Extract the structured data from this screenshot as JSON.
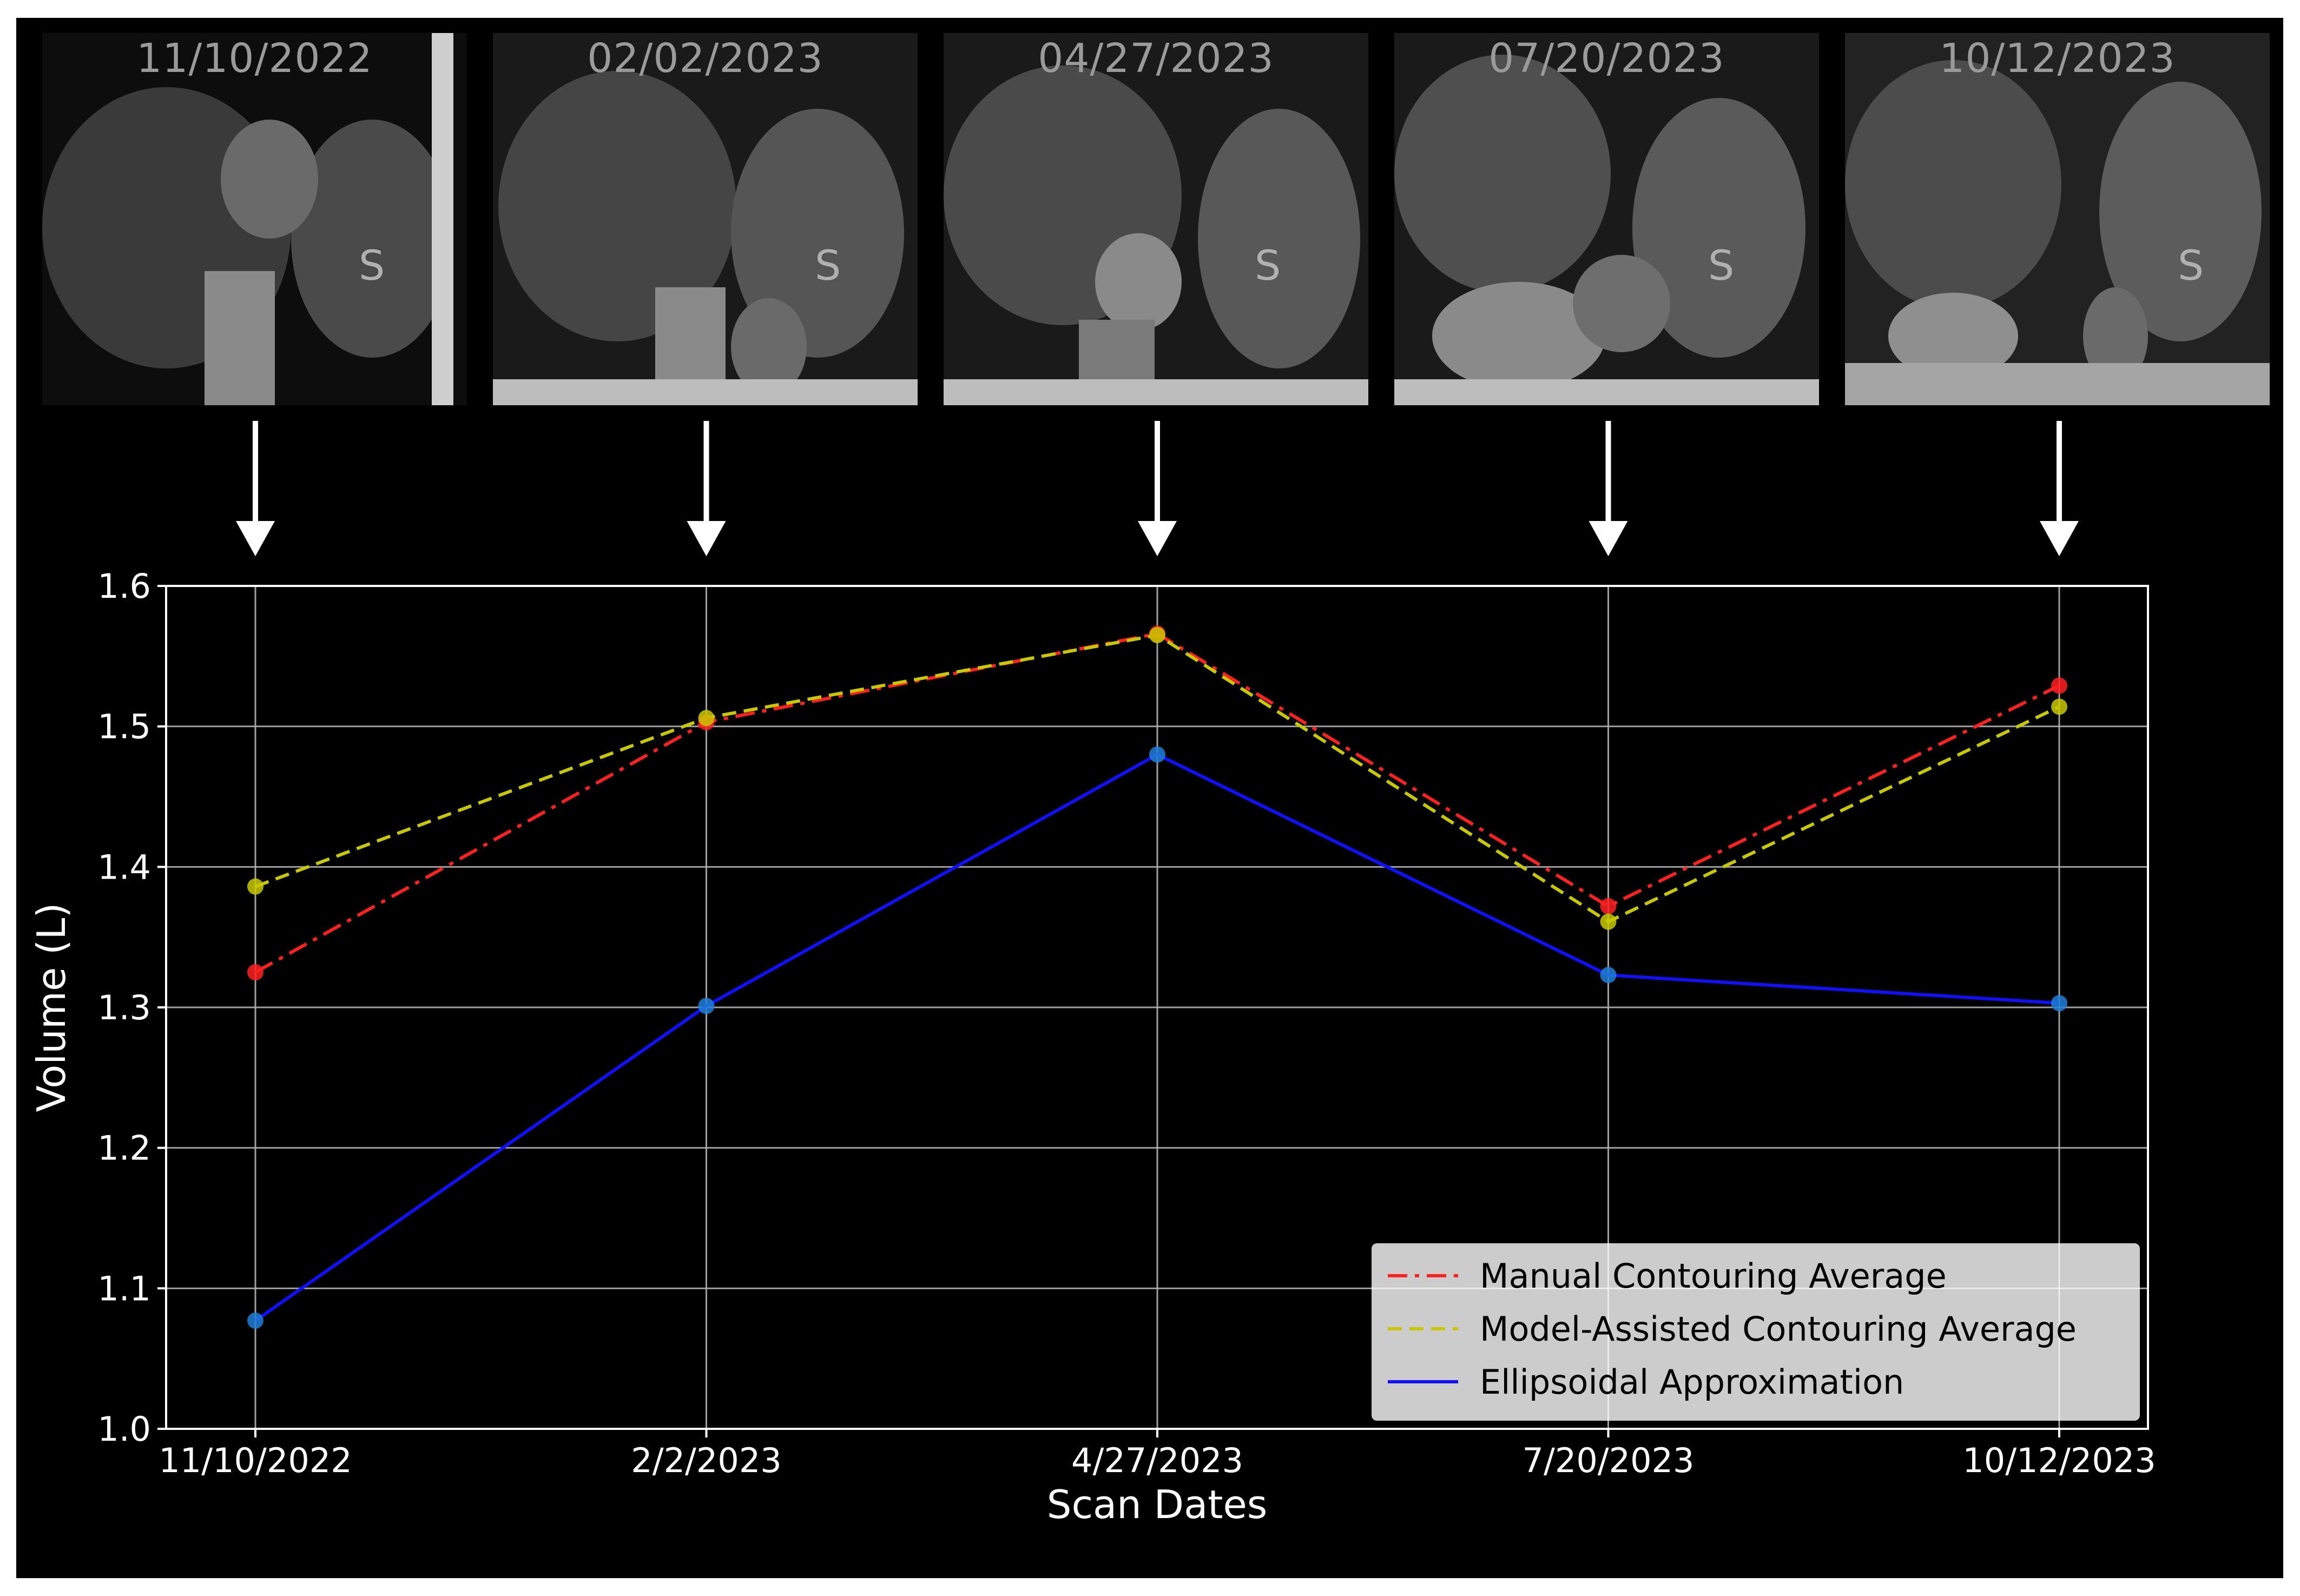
{
  "scans": [
    {
      "date": "11/10/2022",
      "label": "S"
    },
    {
      "date": "02/02/2023",
      "label": "S"
    },
    {
      "date": "04/27/2023",
      "label": "S"
    },
    {
      "date": "07/20/2023",
      "label": "S"
    },
    {
      "date": "10/12/2023",
      "label": "S"
    }
  ],
  "chart_data": {
    "type": "line",
    "categories": [
      "11/10/2022",
      "2/2/2023",
      "4/27/2023",
      "7/20/2023",
      "10/12/2023"
    ],
    "xlabel": "Scan Dates",
    "ylabel": "Volume (L)",
    "ylim": [
      1.0,
      1.6
    ],
    "yticks": [
      "1.0",
      "1.1",
      "1.2",
      "1.3",
      "1.4",
      "1.5",
      "1.6"
    ],
    "grid": true,
    "legend_position": "bottom-right",
    "series": [
      {
        "name": "Manual Contouring Average",
        "values": [
          1.325,
          1.503,
          1.566,
          1.372,
          1.529
        ],
        "color": "#ff2020",
        "style": "dashdot"
      },
      {
        "name": "Model-Assisted Contouring Average",
        "values": [
          1.386,
          1.506,
          1.565,
          1.361,
          1.514
        ],
        "color": "#c8c800",
        "style": "dashed"
      },
      {
        "name": "Ellipsoidal Approximation",
        "values": [
          1.077,
          1.301,
          1.48,
          1.323,
          1.303
        ],
        "color": "#1010ff",
        "style": "solid"
      }
    ]
  }
}
